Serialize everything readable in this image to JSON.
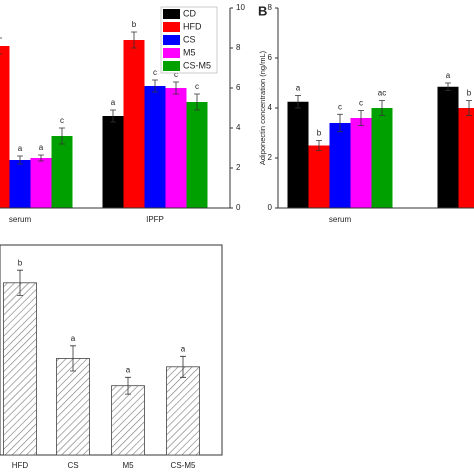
{
  "chart_data": [
    {
      "type": "bar",
      "categories": [
        "serum",
        "IPFP"
      ],
      "ylim": [
        0,
        10
      ],
      "yticks": [
        0,
        2,
        4,
        6,
        8,
        10
      ],
      "series": [
        {
          "name": "CD",
          "color": "#000000",
          "values": [
            null,
            4.6
          ],
          "errors": [
            null,
            0.3
          ],
          "annotations": [
            null,
            "a"
          ]
        },
        {
          "name": "HFD",
          "color": "#ff0000",
          "values": [
            8.1,
            8.4
          ],
          "errors": [
            0.4,
            0.4
          ],
          "annotations": [
            null,
            "b"
          ]
        },
        {
          "name": "CS",
          "color": "#0000ff",
          "values": [
            2.4,
            6.1
          ],
          "errors": [
            0.2,
            0.3
          ],
          "annotations": [
            "a",
            "c"
          ]
        },
        {
          "name": "M5",
          "color": "#ff00ff",
          "values": [
            2.5,
            6.0
          ],
          "errors": [
            0.15,
            0.3
          ],
          "annotations": [
            "a",
            "c"
          ]
        },
        {
          "name": "CS-M5",
          "color": "#00a000",
          "values": [
            3.6,
            5.3
          ],
          "errors": [
            0.4,
            0.4
          ],
          "annotations": [
            "c",
            "c"
          ]
        }
      ]
    },
    {
      "type": "bar",
      "panel": "B",
      "y_label": "Adiponectin concentration (ng/mL)",
      "categories": [
        "serum",
        null
      ],
      "ylim": [
        0,
        8
      ],
      "yticks": [
        0,
        2,
        4,
        6,
        8
      ],
      "series": [
        {
          "name": "CD",
          "color": "#000000",
          "values": [
            4.25,
            4.85
          ],
          "errors": [
            0.25,
            0.15
          ],
          "annotations": [
            "a",
            "a"
          ]
        },
        {
          "name": "HFD",
          "color": "#ff0000",
          "values": [
            2.5,
            4.0
          ],
          "errors": [
            0.2,
            0.3
          ],
          "annotations": [
            "b",
            "b"
          ]
        },
        {
          "name": "CS",
          "color": "#0000ff",
          "values": [
            3.4,
            null
          ],
          "errors": [
            0.35,
            null
          ],
          "annotations": [
            "c",
            null
          ]
        },
        {
          "name": "M5",
          "color": "#ff00ff",
          "values": [
            3.6,
            null
          ],
          "errors": [
            0.3,
            null
          ],
          "annotations": [
            "c",
            null
          ]
        },
        {
          "name": "CS-M5",
          "color": "#00a000",
          "values": [
            4.0,
            null
          ],
          "errors": [
            0.3,
            null
          ],
          "annotations": [
            "ac",
            null
          ]
        }
      ]
    },
    {
      "type": "hatched-bar",
      "categories": [
        "HFD",
        "CS",
        "M5",
        "CS-M5"
      ],
      "ylim": [
        0,
        10
      ],
      "values": [
        8.2,
        4.6,
        3.3,
        4.2
      ],
      "errors": [
        0.6,
        0.6,
        0.4,
        0.5
      ],
      "annotations": [
        "b",
        "a",
        "a",
        "a"
      ]
    }
  ]
}
